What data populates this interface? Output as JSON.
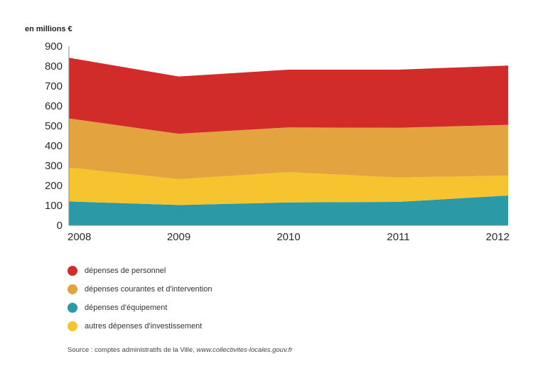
{
  "chart_data": {
    "type": "area",
    "stacked": true,
    "ylabel": "en millions €",
    "x": [
      "2008",
      "2009",
      "2010",
      "2011",
      "2012"
    ],
    "yticks": [
      0,
      100,
      200,
      300,
      400,
      500,
      600,
      700,
      800,
      900
    ],
    "ylim": [
      0,
      900
    ],
    "series": [
      {
        "name": "dépenses d'équipement",
        "color": "#2b9aa6",
        "values": [
          120,
          102,
          115,
          118,
          150
        ]
      },
      {
        "name": "autres dépenses d'investissement",
        "color": "#f5c42f",
        "values": [
          170,
          130,
          152,
          122,
          100
        ]
      },
      {
        "name": "dépenses courantes et d'intervention",
        "color": "#e3a43f",
        "values": [
          247,
          228,
          225,
          250,
          255
        ]
      },
      {
        "name": "dépenses de personnel",
        "color": "#d12c2a",
        "values": [
          305,
          288,
          290,
          292,
          298
        ]
      }
    ],
    "legend_order": [
      3,
      2,
      0,
      1
    ],
    "legend_position": "bottom-left"
  },
  "source": {
    "prefix": "Source : comptes administratifs de la Ville, ",
    "url": "www.collectivites-locales.gouv.fr"
  }
}
